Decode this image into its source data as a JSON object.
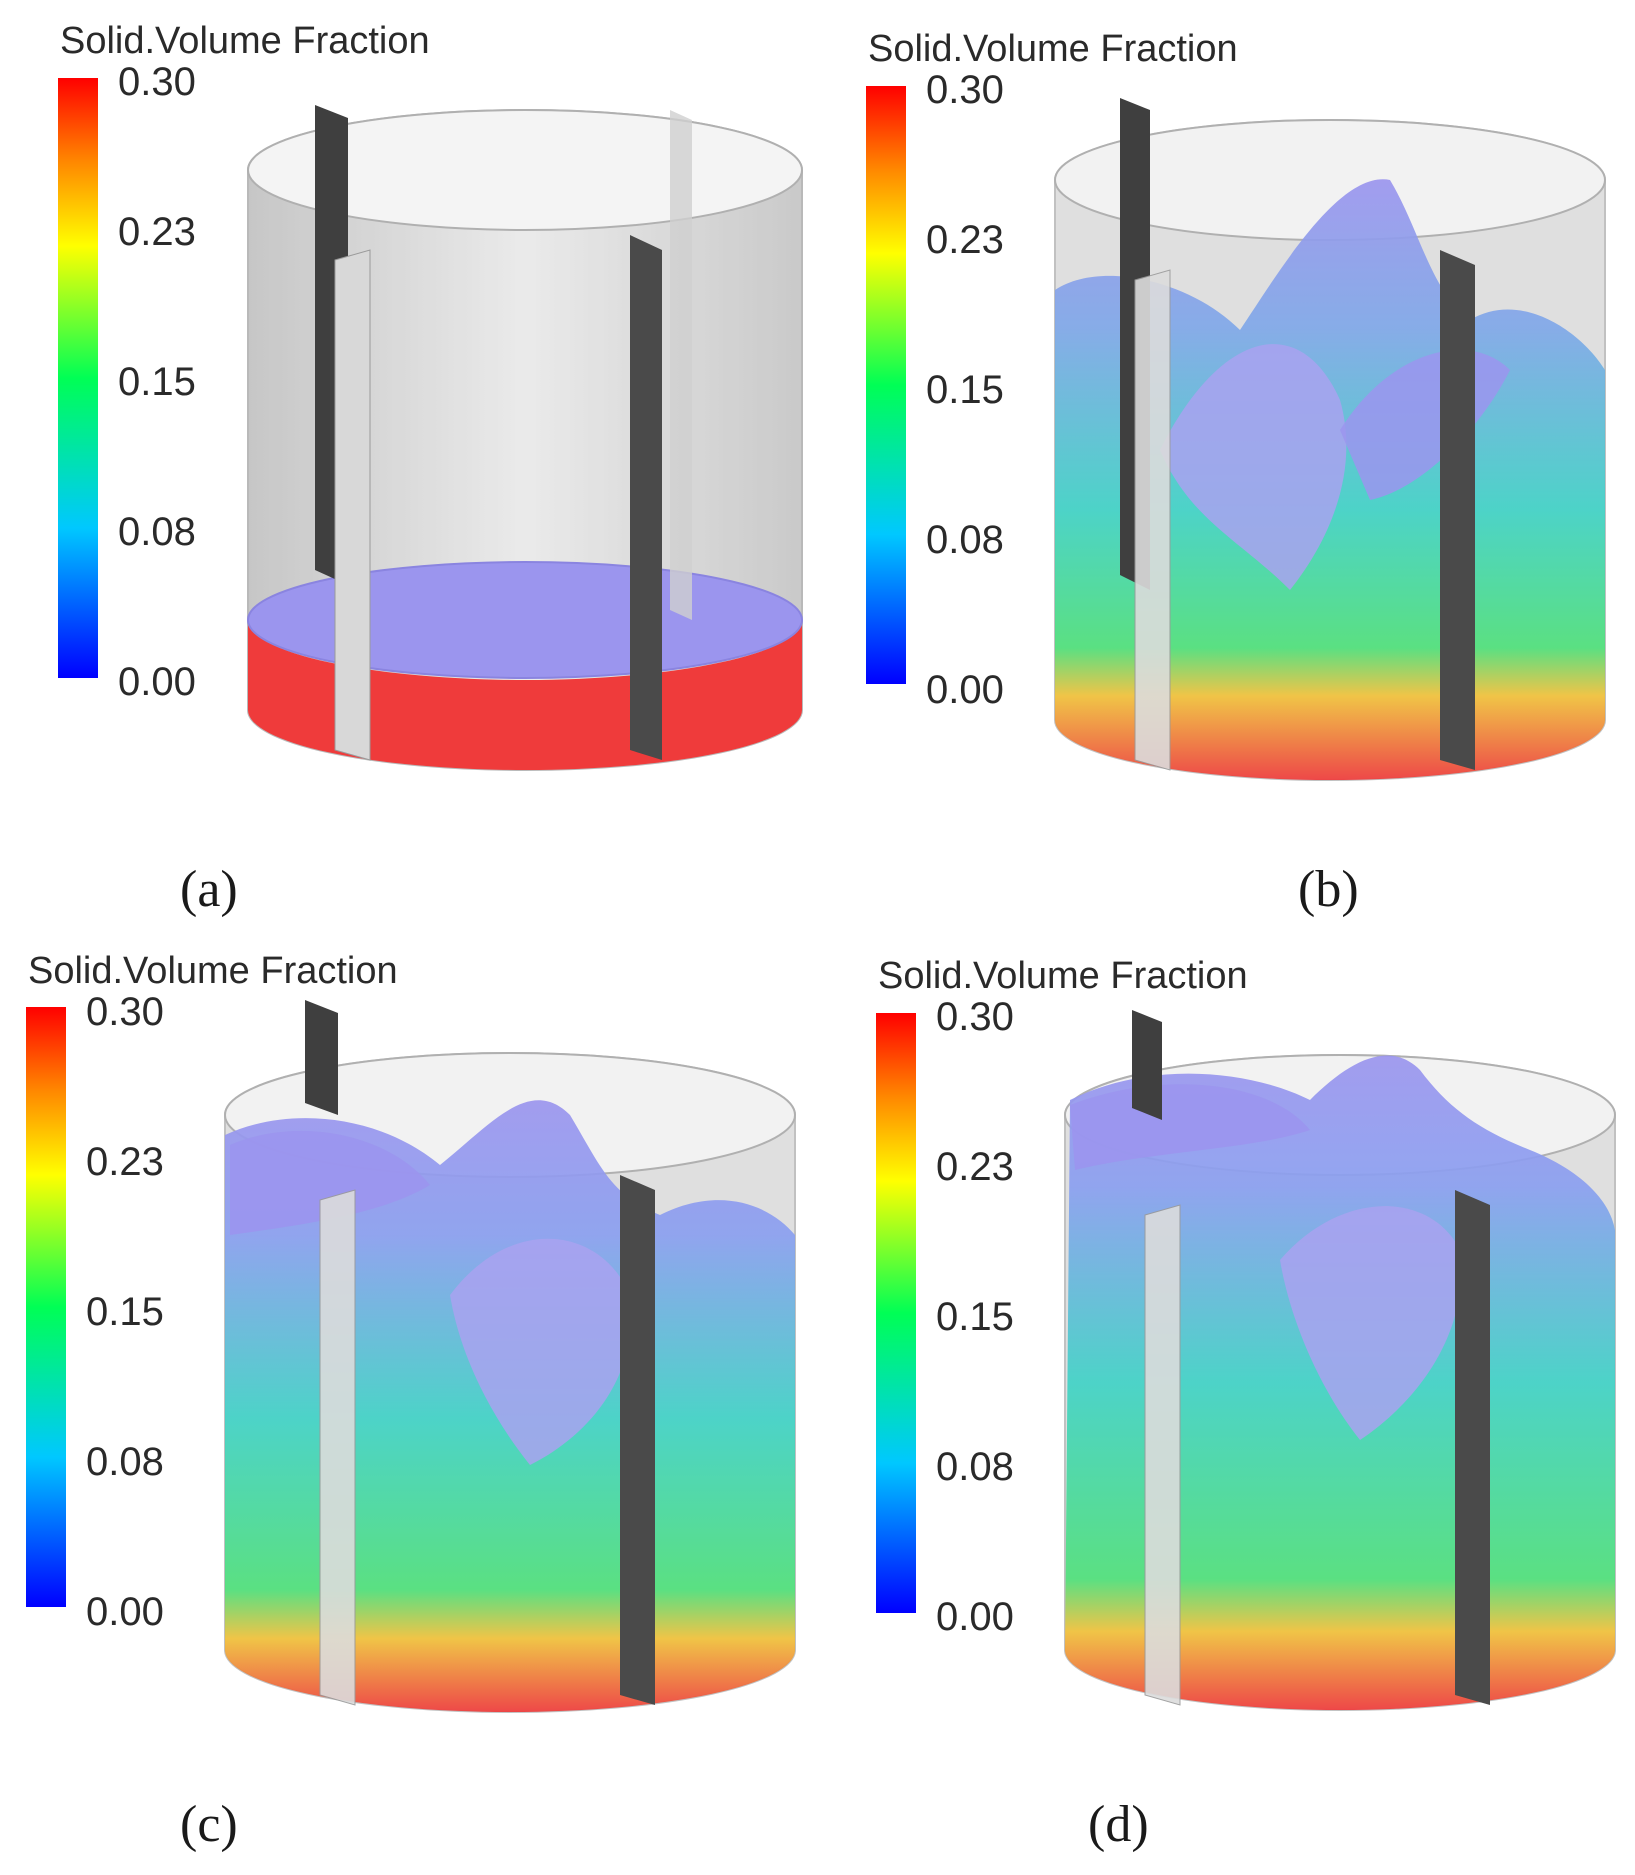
{
  "colorbar": {
    "title": "Solid.Volume Fraction",
    "ticks": [
      "0.30",
      "0.23",
      "0.15",
      "0.08",
      "0.00"
    ],
    "range": [
      0.0,
      0.3
    ],
    "colormap": [
      "#0000ff",
      "#00c8ff",
      "#00ff66",
      "#ffff00",
      "#ff8800",
      "#ff0000"
    ]
  },
  "panels": [
    {
      "label": "(a)",
      "state": "settled"
    },
    {
      "label": "(b)",
      "state": "suspended"
    },
    {
      "label": "(c)",
      "state": "suspended"
    },
    {
      "label": "(d)",
      "state": "suspended"
    }
  ],
  "colors": {
    "settled_bed": "#ef3b3b",
    "cloud_surface": "#9b95ee",
    "cloud_low": "#33d6c8",
    "baffle": "#3f3f3f",
    "vessel_wall": "#c9c9c9"
  }
}
